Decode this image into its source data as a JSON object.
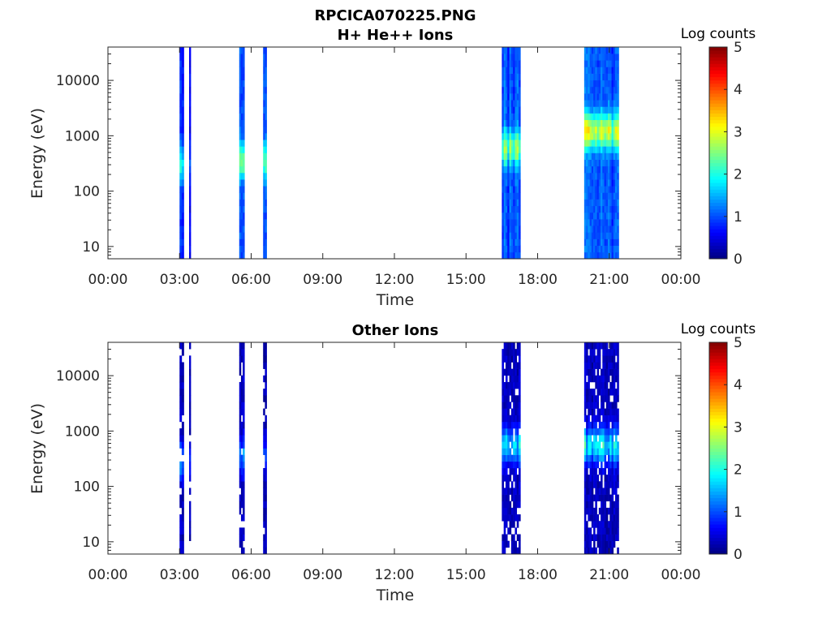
{
  "figure": {
    "title_line1": "RPCICA070225.PNG"
  },
  "chart_data": [
    {
      "type": "heatmap",
      "title": "H+ He++ Ions",
      "xlabel": "Time",
      "ylabel": "Energy (eV)",
      "x_ticks": [
        "00:00",
        "03:00",
        "06:00",
        "09:00",
        "12:00",
        "15:00",
        "18:00",
        "21:00",
        "00:00"
      ],
      "xlim_hours": [
        0,
        24
      ],
      "y_scale": "log",
      "ylim": [
        6,
        40000
      ],
      "y_ticks": [
        {
          "value": 10,
          "label": "10"
        },
        {
          "value": 100,
          "label": "100"
        },
        {
          "value": 1000,
          "label": "1000"
        },
        {
          "value": 10000,
          "label": "10000"
        }
      ],
      "colorbar": {
        "label": "Log counts",
        "min": 0,
        "max": 5,
        "ticks": [
          "0",
          "1",
          "2",
          "3",
          "4",
          "5"
        ],
        "colormap": "jet"
      },
      "intervals": [
        {
          "start_h": 3.0,
          "end_h": 3.18,
          "peak_energy": 300,
          "peak_level": 2.0,
          "bg_level": 0.8
        },
        {
          "start_h": 3.4,
          "end_h": 3.47,
          "peak_energy": 300,
          "peak_level": 1.0,
          "bg_level": 0.6
        },
        {
          "start_h": 5.5,
          "end_h": 5.72,
          "peak_energy": 350,
          "peak_level": 2.2,
          "bg_level": 0.9
        },
        {
          "start_h": 6.5,
          "end_h": 6.65,
          "peak_energy": 350,
          "peak_level": 2.1,
          "bg_level": 0.9
        },
        {
          "start_h": 16.5,
          "end_h": 17.28,
          "peak_energy": 600,
          "peak_level": 2.4,
          "bg_level": 1.0
        },
        {
          "start_h": 19.95,
          "end_h": 21.4,
          "peak_energy": 1200,
          "peak_level": 2.7,
          "bg_level": 1.0
        }
      ]
    },
    {
      "type": "heatmap",
      "title": "Other Ions",
      "xlabel": "Time",
      "ylabel": "Energy (eV)",
      "x_ticks": [
        "00:00",
        "03:00",
        "06:00",
        "09:00",
        "12:00",
        "15:00",
        "18:00",
        "21:00",
        "00:00"
      ],
      "xlim_hours": [
        0,
        24
      ],
      "y_scale": "log",
      "ylim": [
        6,
        40000
      ],
      "y_ticks": [
        {
          "value": 10,
          "label": "10"
        },
        {
          "value": 100,
          "label": "100"
        },
        {
          "value": 1000,
          "label": "1000"
        },
        {
          "value": 10000,
          "label": "10000"
        }
      ],
      "colorbar": {
        "label": "Log counts",
        "min": 0,
        "max": 5,
        "ticks": [
          "0",
          "1",
          "2",
          "3",
          "4",
          "5"
        ],
        "colormap": "jet"
      },
      "intervals": [
        {
          "start_h": 3.0,
          "end_h": 3.18,
          "peak_energy": 300,
          "peak_level": 1.3,
          "bg_level": 0.3
        },
        {
          "start_h": 3.4,
          "end_h": 3.47,
          "peak_energy": 300,
          "peak_level": 0.6,
          "bg_level": 0.2
        },
        {
          "start_h": 5.5,
          "end_h": 5.72,
          "peak_energy": 350,
          "peak_level": 1.2,
          "bg_level": 0.3
        },
        {
          "start_h": 6.5,
          "end_h": 6.65,
          "peak_energy": 350,
          "peak_level": 1.1,
          "bg_level": 0.3
        },
        {
          "start_h": 16.5,
          "end_h": 17.28,
          "peak_energy": 550,
          "peak_level": 1.6,
          "bg_level": 0.3
        },
        {
          "start_h": 19.95,
          "end_h": 21.4,
          "peak_energy": 550,
          "peak_level": 1.8,
          "bg_level": 0.3
        }
      ]
    }
  ]
}
